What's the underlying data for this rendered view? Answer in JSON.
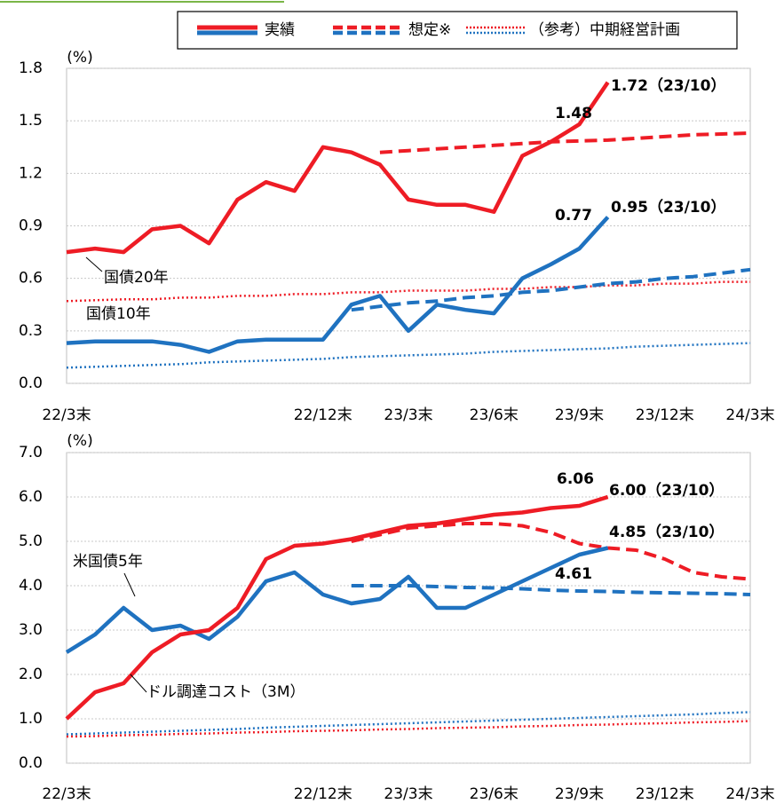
{
  "legend": {
    "items": [
      "実績",
      "想定※",
      "（参考）中期経営計画"
    ]
  },
  "chart_data": [
    {
      "type": "line",
      "y_unit": "(%)",
      "categories": [
        "22/3末",
        null,
        null,
        null,
        null,
        null,
        null,
        null,
        null,
        "22/12末",
        null,
        null,
        "23/3末",
        null,
        null,
        "23/6末",
        null,
        null,
        "23/9末",
        null,
        null,
        "23/12末",
        null,
        null,
        "24/3末"
      ],
      "ylim": [
        0,
        1.8
      ],
      "yticks": [
        {
          "value": 0,
          "label": "0.0"
        },
        0.3,
        0.6,
        0.9,
        1.2,
        1.5,
        1.8
      ],
      "grid": true,
      "series": [
        {
          "name": "国債20年",
          "color": "#ee1c25",
          "values": [
            0.75,
            0.77,
            0.75,
            0.88,
            0.9,
            0.8,
            1.05,
            1.15,
            1.1,
            1.35,
            1.32,
            1.25,
            1.05,
            1.02,
            1.02,
            0.98,
            1.3,
            1.38,
            1.48,
            1.72,
            null,
            null,
            null,
            null,
            null
          ],
          "forecast": [
            null,
            null,
            null,
            null,
            null,
            null,
            null,
            null,
            null,
            null,
            null,
            1.32,
            1.33,
            1.34,
            1.35,
            1.36,
            1.37,
            1.38,
            1.385,
            1.39,
            1.4,
            1.41,
            1.42,
            1.425,
            1.43
          ],
          "plan": [
            0.47,
            0.475,
            0.48,
            0.48,
            0.49,
            0.49,
            0.5,
            0.5,
            0.51,
            0.51,
            0.52,
            0.52,
            0.53,
            0.53,
            0.53,
            0.54,
            0.54,
            0.55,
            0.55,
            0.56,
            0.56,
            0.57,
            0.57,
            0.58,
            0.58
          ]
        },
        {
          "name": "国債10年",
          "color": "#1f72c0",
          "values": [
            0.23,
            0.24,
            0.24,
            0.24,
            0.22,
            0.18,
            0.24,
            0.25,
            0.25,
            0.25,
            0.45,
            0.5,
            0.3,
            0.45,
            0.42,
            0.4,
            0.6,
            0.68,
            0.77,
            0.95,
            null,
            null,
            null,
            null,
            null
          ],
          "forecast": [
            null,
            null,
            null,
            null,
            null,
            null,
            null,
            null,
            null,
            null,
            0.42,
            0.44,
            0.46,
            0.47,
            0.49,
            0.5,
            0.52,
            0.53,
            0.55,
            0.57,
            0.58,
            0.6,
            0.61,
            0.63,
            0.65
          ],
          "plan": [
            0.09,
            0.095,
            0.1,
            0.105,
            0.11,
            0.12,
            0.125,
            0.13,
            0.135,
            0.14,
            0.15,
            0.155,
            0.16,
            0.165,
            0.17,
            0.18,
            0.185,
            0.19,
            0.195,
            0.2,
            0.21,
            0.215,
            0.22,
            0.225,
            0.23
          ]
        }
      ],
      "annotations": [
        "1.72（23/10）",
        "1.48",
        "0.95（23/10）",
        "0.77"
      ]
    },
    {
      "type": "line",
      "y_unit": "(%)",
      "categories": [
        "22/3末",
        null,
        null,
        null,
        null,
        null,
        null,
        null,
        null,
        "22/12末",
        null,
        null,
        "23/3末",
        null,
        null,
        "23/6末",
        null,
        null,
        "23/9末",
        null,
        null,
        "23/12末",
        null,
        null,
        "24/3末"
      ],
      "ylim": [
        0,
        7
      ],
      "yticks": [
        {
          "value": 0,
          "label": "0.0"
        },
        {
          "value": 1,
          "label": "1.0"
        },
        {
          "value": 2,
          "label": "2.0"
        },
        {
          "value": 3,
          "label": "3.0"
        },
        {
          "value": 4,
          "label": "4.0"
        },
        {
          "value": 5,
          "label": "5.0"
        },
        {
          "value": 6,
          "label": "6.0"
        },
        {
          "value": 7,
          "label": "7.0"
        }
      ],
      "grid": true,
      "series": [
        {
          "name": "米国債5年",
          "color": "#1f72c0",
          "values": [
            2.5,
            2.9,
            3.5,
            3.0,
            3.1,
            2.8,
            3.3,
            4.1,
            4.3,
            3.8,
            3.6,
            3.7,
            4.2,
            3.5,
            3.5,
            3.8,
            4.1,
            4.4,
            4.7,
            4.85,
            null,
            null,
            null,
            null,
            null
          ],
          "forecast": [
            null,
            null,
            null,
            null,
            null,
            null,
            null,
            null,
            null,
            null,
            4.0,
            4.0,
            4.0,
            3.98,
            3.96,
            3.95,
            3.93,
            3.9,
            3.88,
            3.87,
            3.85,
            3.84,
            3.83,
            3.82,
            3.8
          ],
          "plan": [
            0.65,
            0.67,
            0.69,
            0.71,
            0.73,
            0.75,
            0.77,
            0.8,
            0.82,
            0.84,
            0.86,
            0.88,
            0.9,
            0.92,
            0.94,
            0.96,
            0.98,
            1.0,
            1.02,
            1.04,
            1.06,
            1.08,
            1.1,
            1.13,
            1.15
          ]
        },
        {
          "name": "ドル調達コスト（3M）",
          "color": "#ee1c25",
          "values": [
            1.0,
            1.6,
            1.8,
            2.5,
            2.9,
            3.0,
            3.5,
            4.6,
            4.9,
            4.95,
            5.05,
            5.2,
            5.35,
            5.4,
            5.5,
            5.6,
            5.65,
            5.75,
            5.8,
            6.0,
            null,
            null,
            null,
            null,
            null
          ],
          "forecast": [
            null,
            null,
            null,
            null,
            null,
            null,
            null,
            null,
            null,
            null,
            5.0,
            5.15,
            5.3,
            5.35,
            5.4,
            5.4,
            5.35,
            5.2,
            4.95,
            4.85,
            4.8,
            4.6,
            4.3,
            4.2,
            4.15
          ],
          "plan": [
            0.6,
            0.61,
            0.63,
            0.64,
            0.66,
            0.67,
            0.69,
            0.7,
            0.72,
            0.73,
            0.74,
            0.76,
            0.77,
            0.79,
            0.8,
            0.81,
            0.83,
            0.84,
            0.86,
            0.87,
            0.89,
            0.9,
            0.92,
            0.93,
            0.95
          ]
        }
      ],
      "annotations": [
        "6.06",
        "6.00（23/10）",
        "4.85（23/10）",
        "4.61"
      ]
    }
  ]
}
